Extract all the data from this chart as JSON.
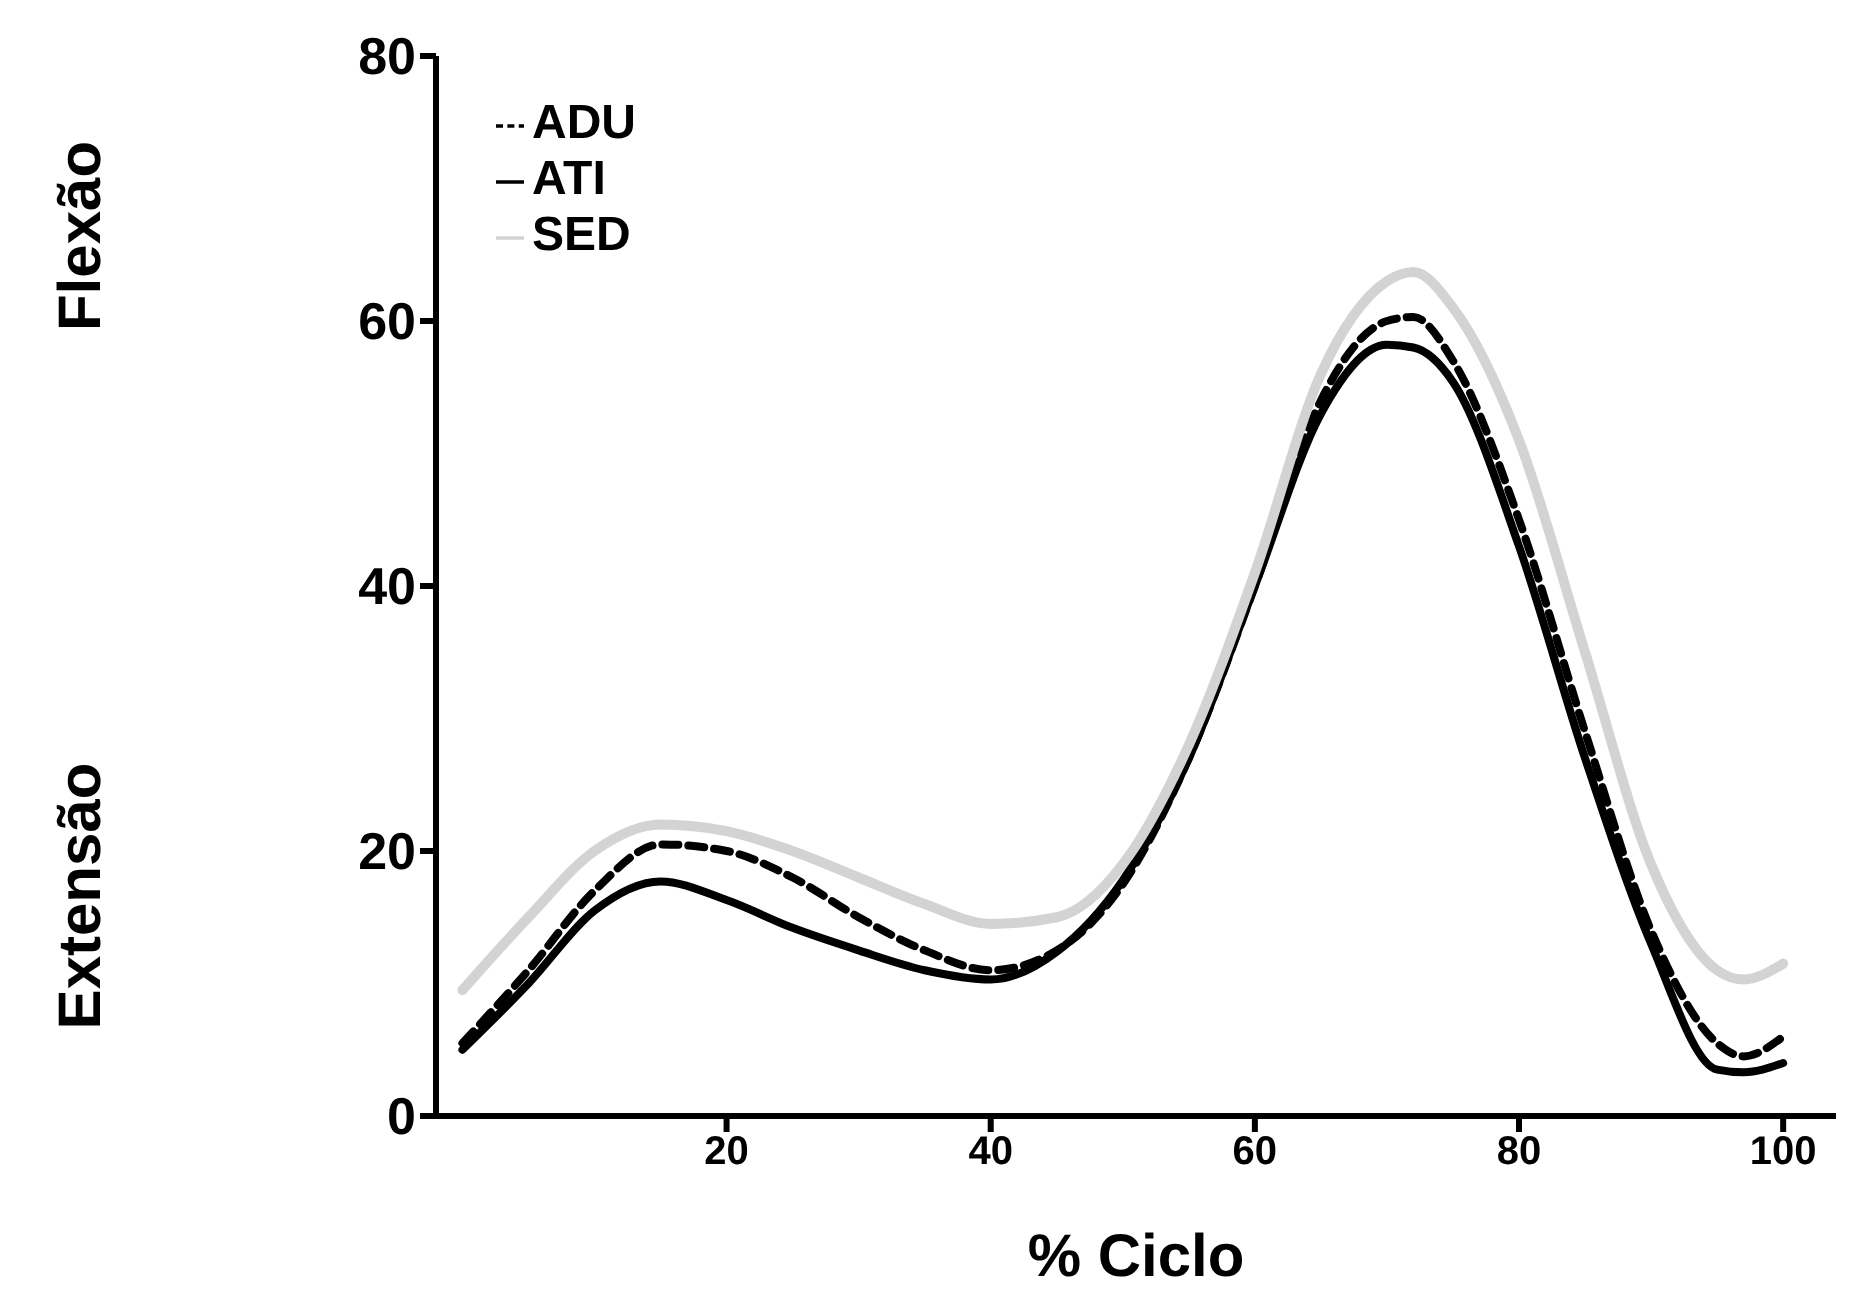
{
  "chart_data": {
    "type": "line",
    "xlabel": "% Ciclo",
    "ylabel": "Flexão",
    "annotations": [
      "Extensão"
    ],
    "x": [
      0,
      5,
      10,
      15,
      20,
      25,
      30,
      35,
      40,
      45,
      50,
      55,
      60,
      65,
      70,
      72,
      75,
      80,
      85,
      90,
      95,
      97,
      100
    ],
    "series": [
      {
        "name": "ADU",
        "color": "#000000",
        "line_style": "dashed",
        "values": [
          5.5,
          11,
          17,
          20.5,
          20,
          18,
          15,
          12.5,
          11,
          12.5,
          17.5,
          27,
          40,
          54,
          60,
          60.3,
          57,
          45,
          29,
          14,
          5.5,
          4.5,
          6
        ]
      },
      {
        "name": "ATI",
        "color": "#000000",
        "line_style": "solid",
        "values": [
          5,
          10,
          15.5,
          17.7,
          16.3,
          14.2,
          12.5,
          11,
          10.3,
          12.4,
          17.8,
          27,
          40,
          53,
          58.2,
          58,
          55.4,
          43,
          27,
          13,
          3.5,
          3.3,
          4
        ]
      },
      {
        "name": "SED",
        "color": "#d3d3d3",
        "line_style": "solid",
        "values": [
          9.5,
          15,
          20,
          22,
          21.5,
          20,
          18,
          16,
          14.5,
          15,
          19,
          28,
          41,
          56,
          63,
          63.7,
          61,
          51,
          35,
          19,
          11,
          10.3,
          11.5
        ]
      }
    ],
    "xlim": [
      -2,
      104
    ],
    "xticks": [
      20,
      40,
      60,
      80,
      100
    ],
    "ylim": [
      0,
      80
    ],
    "yticks": [
      0,
      20,
      40,
      60,
      80
    ],
    "grid": false,
    "legend": "top left",
    "marker": "none"
  }
}
